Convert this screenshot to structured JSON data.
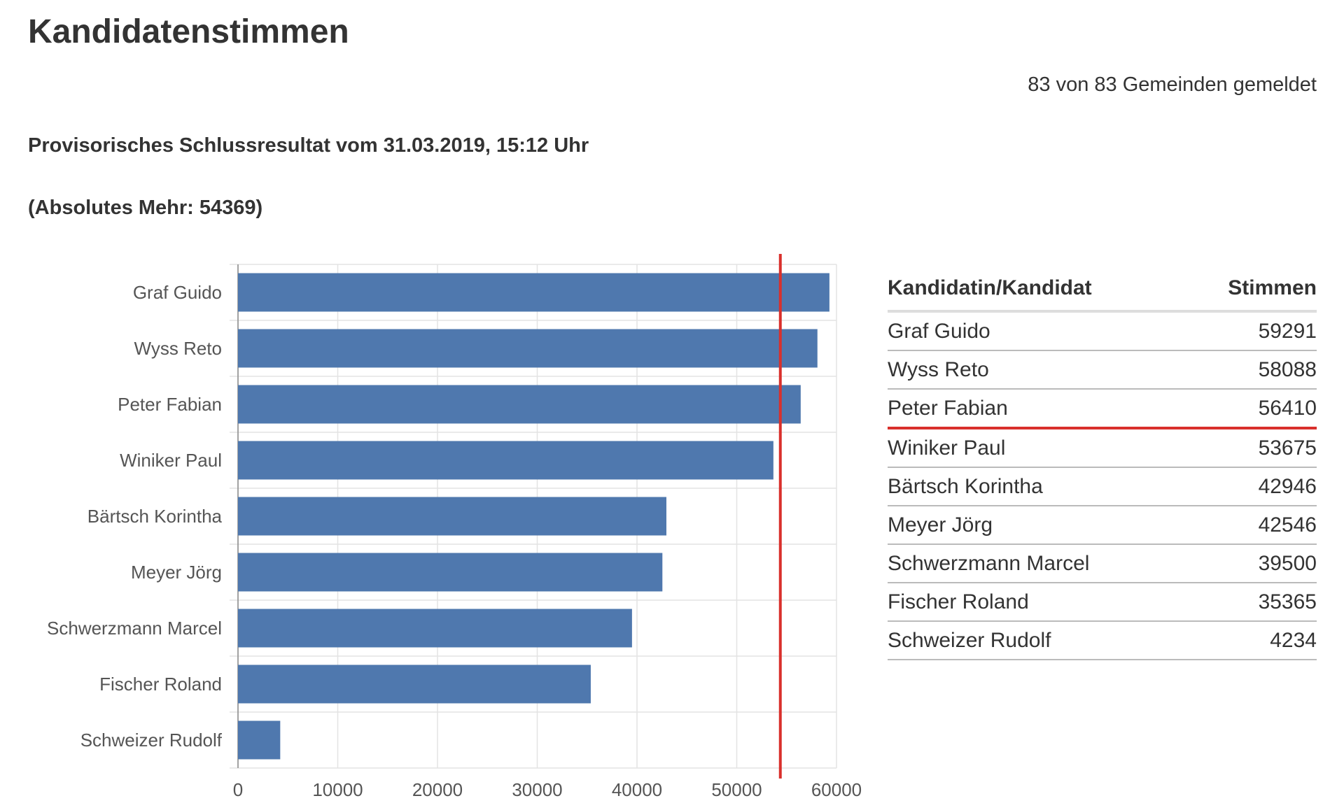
{
  "title": "Kandidatenstimmen",
  "reported": "83 von 83 Gemeinden gemeldet",
  "subtitle": "Provisorisches Schlussresultat vom 31.03.2019, 15:12 Uhr",
  "absolute_majority_label": "(Absolutes Mehr: 54369)",
  "colors": {
    "bar": "#4f78ae",
    "majority_line": "#d9302c"
  },
  "table": {
    "headers": [
      "Kandidatin/Kandidat",
      "Stimmen"
    ],
    "rows": [
      {
        "name": "Graf Guido",
        "votes": "59291"
      },
      {
        "name": "Wyss Reto",
        "votes": "58088"
      },
      {
        "name": "Peter Fabian",
        "votes": "56410"
      },
      {
        "name": "Winiker Paul",
        "votes": "53675"
      },
      {
        "name": "Bärtsch Korintha",
        "votes": "42946"
      },
      {
        "name": "Meyer Jörg",
        "votes": "42546"
      },
      {
        "name": "Schwerzmann Marcel",
        "votes": "39500"
      },
      {
        "name": "Fischer Roland",
        "votes": "35365"
      },
      {
        "name": "Schweizer Rudolf",
        "votes": "4234"
      }
    ]
  },
  "chart_data": {
    "type": "bar",
    "orientation": "horizontal",
    "categories": [
      "Graf Guido",
      "Wyss Reto",
      "Peter Fabian",
      "Winiker Paul",
      "Bärtsch Korintha",
      "Meyer Jörg",
      "Schwerzmann Marcel",
      "Fischer Roland",
      "Schweizer Rudolf"
    ],
    "values": [
      59291,
      58088,
      56410,
      53675,
      42946,
      42546,
      39500,
      35365,
      4234
    ],
    "xlim": [
      0,
      60000
    ],
    "xticks": [
      "0",
      "10000",
      "20000",
      "30000",
      "40000",
      "50000",
      "60000"
    ],
    "reference_line": {
      "value": 54369
    },
    "grid": true
  }
}
